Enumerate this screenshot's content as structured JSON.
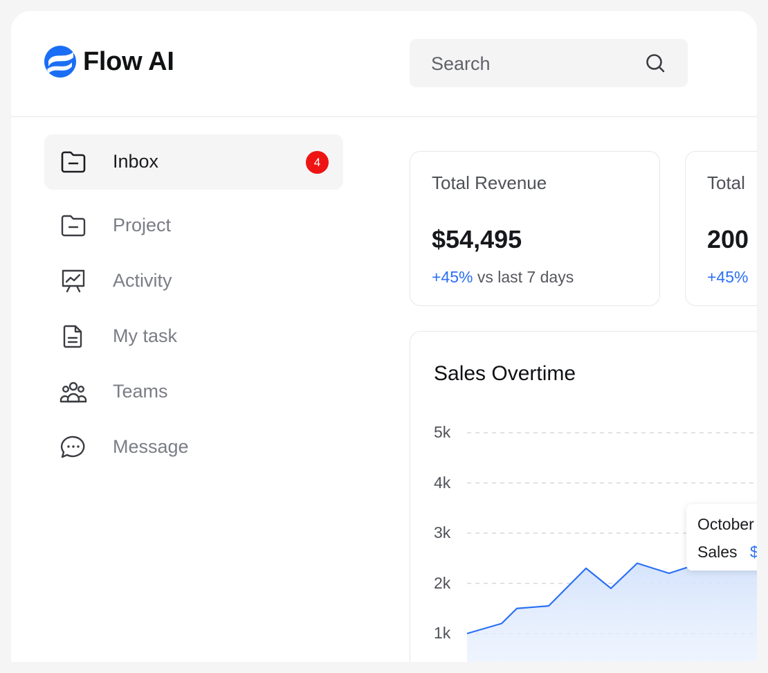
{
  "brand": {
    "name": "Flow AI",
    "color": "#1a6ef5"
  },
  "search": {
    "placeholder": "Search"
  },
  "sidebar": {
    "items": [
      {
        "label": "Inbox",
        "icon": "folder-icon",
        "active": true,
        "badge": "4"
      },
      {
        "label": "Project",
        "icon": "folder-icon"
      },
      {
        "label": "Activity",
        "icon": "presentation-chart-icon"
      },
      {
        "label": "My task",
        "icon": "document-icon"
      },
      {
        "label": "Teams",
        "icon": "users-icon"
      },
      {
        "label": "Message",
        "icon": "chat-bubble-icon"
      }
    ]
  },
  "stats": [
    {
      "title": "Total Revenue",
      "value": "$54,495",
      "delta": "+45%",
      "delta_suffix": "vs last 7 days"
    },
    {
      "title": "Total",
      "value": "200",
      "delta": "+45%",
      "delta_suffix": ""
    }
  ],
  "chart": {
    "title": "Sales Overtime",
    "tooltip": {
      "month": "October",
      "label": "Sales",
      "value": "$"
    }
  },
  "chart_data": {
    "type": "area",
    "title": "Sales Overtime",
    "y_ticks": [
      "5k",
      "4k",
      "3k",
      "2k",
      "1k"
    ],
    "ylim": [
      0,
      5000
    ],
    "grid": true,
    "series": [
      {
        "values": [
          1000,
          1200,
          1500,
          1550,
          2300,
          1900,
          2400,
          2200,
          2450
        ]
      }
    ],
    "line_color": "#2a6ff3"
  }
}
